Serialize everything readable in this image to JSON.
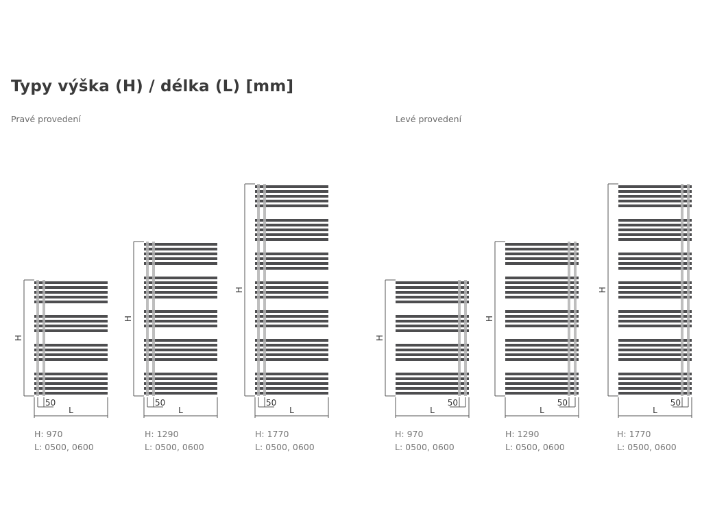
{
  "title": "Typy výška (H) / délka (L) [mm]",
  "sections": [
    {
      "label": "Pravé provedení",
      "side": "right"
    },
    {
      "label": "Levé provedení",
      "side": "left"
    }
  ],
  "dimension_labels": {
    "height": "H",
    "length": "L",
    "offset": "50"
  },
  "colors": {
    "bar": "#4d4d4f",
    "rail": "#b3b3b3",
    "line": "#555555"
  },
  "radiators": [
    {
      "section": 0,
      "h_text": "H: 970",
      "l_text": "L: 0500, 0600",
      "groups": [
        5,
        4,
        4,
        5
      ]
    },
    {
      "section": 0,
      "h_text": "H: 1290",
      "l_text": "L: 0500, 0600",
      "groups": [
        5,
        5,
        4,
        5,
        5
      ]
    },
    {
      "section": 0,
      "h_text": "H: 1770",
      "l_text": "L: 0500, 0600",
      "groups": [
        5,
        5,
        4,
        4,
        4,
        5,
        5
      ]
    },
    {
      "section": 1,
      "h_text": "H: 970",
      "l_text": "L: 0500, 0600",
      "groups": [
        5,
        4,
        4,
        5
      ]
    },
    {
      "section": 1,
      "h_text": "H: 1290",
      "l_text": "L: 0500, 0600",
      "groups": [
        5,
        5,
        4,
        5,
        5
      ]
    },
    {
      "section": 1,
      "h_text": "H: 1770",
      "l_text": "L: 0500, 0600",
      "groups": [
        5,
        5,
        4,
        4,
        4,
        5,
        5
      ]
    }
  ]
}
